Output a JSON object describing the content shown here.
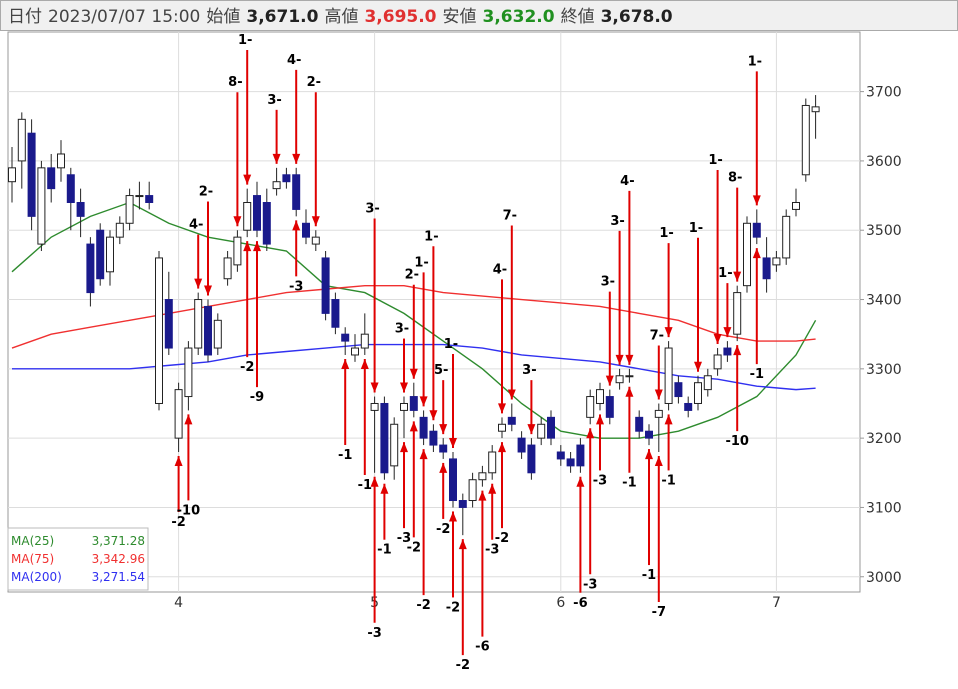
{
  "header": {
    "date_label": "日付",
    "date": "2023/07/07 15:00",
    "fields": [
      {
        "label": "始値",
        "value": "3,671.0",
        "color": "#222"
      },
      {
        "label": "高値",
        "value": "3,695.0",
        "color": "#e03030"
      },
      {
        "label": "安値",
        "value": "3,632.0",
        "color": "#209020"
      },
      {
        "label": "終値",
        "value": "3,678.0",
        "color": "#222"
      }
    ]
  },
  "chart_data": {
    "type": "candlestick",
    "ylim": [
      2978,
      3786
    ],
    "yticks": [
      3000,
      3100,
      3200,
      3300,
      3400,
      3500,
      3600,
      3700
    ],
    "grid": true,
    "x_labels": [
      {
        "index": 17,
        "label": "4"
      },
      {
        "index": 37,
        "label": "5"
      },
      {
        "index": 56,
        "label": "6"
      },
      {
        "index": 78,
        "label": "7"
      }
    ],
    "bull_color": "#ffffff",
    "bear_color": "#1a1a8c",
    "open": [
      3570,
      3600,
      3640,
      3480,
      3590,
      3590,
      3580,
      3540,
      3480,
      3500,
      3440,
      3490,
      3510,
      3550,
      3550,
      3250,
      3400,
      3200,
      3260,
      3330,
      3390,
      3330,
      3430,
      3450,
      3500,
      3550,
      3540,
      3560,
      3580,
      3580,
      3510,
      3480,
      3460,
      3400,
      3350,
      3320,
      3330,
      3240,
      3250,
      3160,
      3240,
      3260,
      3230,
      3210,
      3190,
      3170,
      3110,
      3110,
      3140,
      3150,
      3210,
      3230,
      3200,
      3190,
      3200,
      3230,
      3180,
      3170,
      3190,
      3230,
      3250,
      3260,
      3280,
      3290,
      3230,
      3210,
      3230,
      3250,
      3280,
      3250,
      3250,
      3270,
      3300,
      3330,
      3350,
      3420,
      3510,
      3460,
      3450,
      3460,
      3530,
      3580,
      3671
    ],
    "high": [
      3620,
      3670,
      3660,
      3600,
      3610,
      3630,
      3590,
      3560,
      3490,
      3510,
      3500,
      3520,
      3560,
      3570,
      3570,
      3470,
      3440,
      3280,
      3340,
      3410,
      3400,
      3380,
      3470,
      3500,
      3560,
      3570,
      3560,
      3590,
      3590,
      3590,
      3530,
      3500,
      3470,
      3410,
      3360,
      3350,
      3380,
      3260,
      3260,
      3230,
      3260,
      3280,
      3240,
      3220,
      3200,
      3180,
      3120,
      3150,
      3160,
      3190,
      3230,
      3250,
      3210,
      3200,
      3230,
      3240,
      3190,
      3180,
      3200,
      3270,
      3280,
      3270,
      3300,
      3300,
      3240,
      3220,
      3250,
      3340,
      3290,
      3260,
      3290,
      3300,
      3330,
      3340,
      3420,
      3520,
      3530,
      3490,
      3470,
      3530,
      3560,
      3690,
      3695
    ],
    "low": [
      3540,
      3560,
      3500,
      3470,
      3540,
      3570,
      3500,
      3490,
      3390,
      3420,
      3420,
      3480,
      3500,
      3530,
      3530,
      3240,
      3320,
      3180,
      3240,
      3320,
      3310,
      3320,
      3420,
      3440,
      3490,
      3490,
      3470,
      3550,
      3560,
      3520,
      3480,
      3470,
      3370,
      3350,
      3320,
      3310,
      3320,
      3150,
      3140,
      3140,
      3200,
      3230,
      3190,
      3180,
      3170,
      3100,
      3060,
      3100,
      3130,
      3140,
      3200,
      3210,
      3170,
      3140,
      3190,
      3190,
      3160,
      3150,
      3150,
      3220,
      3240,
      3220,
      3270,
      3280,
      3200,
      3190,
      3180,
      3240,
      3250,
      3230,
      3240,
      3260,
      3290,
      3310,
      3340,
      3410,
      3480,
      3410,
      3440,
      3450,
      3520,
      3570,
      3632
    ],
    "close": [
      3590,
      3660,
      3520,
      3590,
      3560,
      3610,
      3540,
      3520,
      3410,
      3430,
      3490,
      3510,
      3550,
      3550,
      3540,
      3460,
      3330,
      3270,
      3330,
      3400,
      3320,
      3370,
      3460,
      3490,
      3540,
      3500,
      3480,
      3570,
      3570,
      3530,
      3490,
      3490,
      3380,
      3360,
      3340,
      3330,
      3350,
      3250,
      3150,
      3220,
      3250,
      3240,
      3200,
      3190,
      3180,
      3110,
      3100,
      3140,
      3150,
      3180,
      3220,
      3220,
      3180,
      3150,
      3220,
      3200,
      3170,
      3160,
      3160,
      3260,
      3270,
      3230,
      3290,
      3290,
      3210,
      3200,
      3240,
      3330,
      3260,
      3240,
      3280,
      3290,
      3320,
      3320,
      3410,
      3510,
      3490,
      3430,
      3460,
      3520,
      3540,
      3680,
      3678
    ],
    "ma_series": [
      {
        "name": "MA(25)",
        "last": "3,371.28",
        "color": "#2e8b2e",
        "x": [
          0,
          4,
          8,
          12,
          16,
          20,
          24,
          28,
          32,
          36,
          40,
          44,
          48,
          52,
          56,
          60,
          64,
          68,
          72,
          76,
          80,
          82
        ],
        "values": [
          3440,
          3490,
          3520,
          3540,
          3510,
          3490,
          3480,
          3470,
          3420,
          3410,
          3380,
          3340,
          3300,
          3250,
          3210,
          3200,
          3200,
          3210,
          3230,
          3260,
          3320,
          3370
        ]
      },
      {
        "name": "MA(75)",
        "last": "3,342.96",
        "color": "#f03030",
        "x": [
          0,
          4,
          8,
          12,
          16,
          20,
          24,
          28,
          32,
          36,
          40,
          44,
          48,
          52,
          56,
          60,
          64,
          68,
          72,
          76,
          80,
          82
        ],
        "values": [
          3330,
          3350,
          3360,
          3370,
          3380,
          3390,
          3400,
          3410,
          3415,
          3420,
          3420,
          3410,
          3405,
          3400,
          3395,
          3390,
          3380,
          3370,
          3350,
          3340,
          3340,
          3343
        ]
      },
      {
        "name": "MA(200)",
        "last": "3,271.54",
        "color": "#3030f0",
        "x": [
          0,
          4,
          8,
          12,
          16,
          20,
          24,
          28,
          32,
          36,
          40,
          44,
          48,
          52,
          56,
          60,
          64,
          68,
          72,
          76,
          80,
          82
        ],
        "values": [
          3300,
          3300,
          3300,
          3300,
          3305,
          3310,
          3320,
          3325,
          3330,
          3335,
          3335,
          3335,
          3330,
          3320,
          3315,
          3310,
          3300,
          3290,
          3285,
          3275,
          3270,
          3272
        ]
      }
    ],
    "sell_marks": [
      {
        "text": "4-",
        "index": 19
      },
      {
        "text": "2-",
        "index": 20
      },
      {
        "text": "8-",
        "index": 23
      },
      {
        "text": "1-",
        "index": 24
      },
      {
        "text": "3-",
        "index": 27
      },
      {
        "text": "4-",
        "index": 29
      },
      {
        "text": "2-",
        "index": 31
      },
      {
        "text": "3-",
        "index": 37
      },
      {
        "text": "3-",
        "index": 40
      },
      {
        "text": "2-",
        "index": 41
      },
      {
        "text": "1-",
        "index": 42
      },
      {
        "text": "1-",
        "index": 43
      },
      {
        "text": "5-",
        "index": 44
      },
      {
        "text": "1-",
        "index": 45
      },
      {
        "text": "4-",
        "index": 50
      },
      {
        "text": "7-",
        "index": 51
      },
      {
        "text": "3-",
        "index": 53
      },
      {
        "text": "3-",
        "index": 61
      },
      {
        "text": "3-",
        "index": 62
      },
      {
        "text": "4-",
        "index": 63
      },
      {
        "text": "7-",
        "index": 66
      },
      {
        "text": "1-",
        "index": 67
      },
      {
        "text": "1-",
        "index": 70
      },
      {
        "text": "1-",
        "index": 72
      },
      {
        "text": "1-",
        "index": 73
      },
      {
        "text": "8-",
        "index": 74
      },
      {
        "text": "1-",
        "index": 76
      }
    ],
    "buy_marks": [
      {
        "text": "-2",
        "index": 17
      },
      {
        "text": "-10",
        "index": 18
      },
      {
        "text": "-2",
        "index": 24
      },
      {
        "text": "-9",
        "index": 25
      },
      {
        "text": "-3",
        "index": 29
      },
      {
        "text": "-1",
        "index": 34
      },
      {
        "text": "-1",
        "index": 36
      },
      {
        "text": "-3",
        "index": 37
      },
      {
        "text": "-1",
        "index": 38
      },
      {
        "text": "-3",
        "index": 40
      },
      {
        "text": "-2",
        "index": 41
      },
      {
        "text": "-2",
        "index": 42
      },
      {
        "text": "-2",
        "index": 44
      },
      {
        "text": "-2",
        "index": 45
      },
      {
        "text": "-2",
        "index": 46
      },
      {
        "text": "-6",
        "index": 48
      },
      {
        "text": "-3",
        "index": 49
      },
      {
        "text": "-2",
        "index": 50
      },
      {
        "text": "-6",
        "index": 58
      },
      {
        "text": "-3",
        "index": 59
      },
      {
        "text": "-3",
        "index": 60
      },
      {
        "text": "-1",
        "index": 63
      },
      {
        "text": "-1",
        "index": 65
      },
      {
        "text": "-7",
        "index": 66
      },
      {
        "text": "-1",
        "index": 67
      },
      {
        "text": "-10",
        "index": 74
      },
      {
        "text": "-1",
        "index": 76
      }
    ]
  }
}
